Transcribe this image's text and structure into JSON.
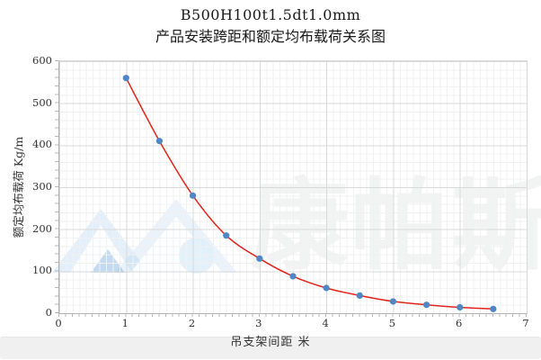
{
  "watermark": {
    "text": "康帕斯",
    "logo": "compass-mountain-logo"
  },
  "colors": {
    "trendline": "#e0251b",
    "point": "#4f86c6",
    "major_grid": "#d9d9d9",
    "minor_grid": "#f1f1f1",
    "axis": "#b3b3b3"
  },
  "chart_data": {
    "type": "scatter",
    "title": "B500H100t1.5dt1.0mm",
    "subtitle": "产品安装跨距和额定均布载荷关系图",
    "xlabel": "吊支架间距 米",
    "ylabel": "额定均布载荷 Kg/m",
    "xlim": [
      0,
      7
    ],
    "ylim": [
      0,
      600
    ],
    "x_ticks": [
      0,
      1,
      2,
      3,
      4,
      5,
      6,
      7
    ],
    "y_ticks": [
      0,
      100,
      200,
      300,
      400,
      500,
      600
    ],
    "x_minor_unit": 0.1,
    "y_minor_unit": 20,
    "grid": true,
    "legend": "none",
    "points": {
      "x": [
        1.0,
        1.5,
        2.0,
        2.5,
        3.0,
        3.5,
        4.0,
        4.5,
        5.0,
        5.5,
        6.0,
        6.5
      ],
      "y": [
        560,
        410,
        280,
        185,
        130,
        88,
        60,
        42,
        28,
        20,
        14,
        10
      ]
    },
    "trendline": "smooth-curve-through-points"
  }
}
